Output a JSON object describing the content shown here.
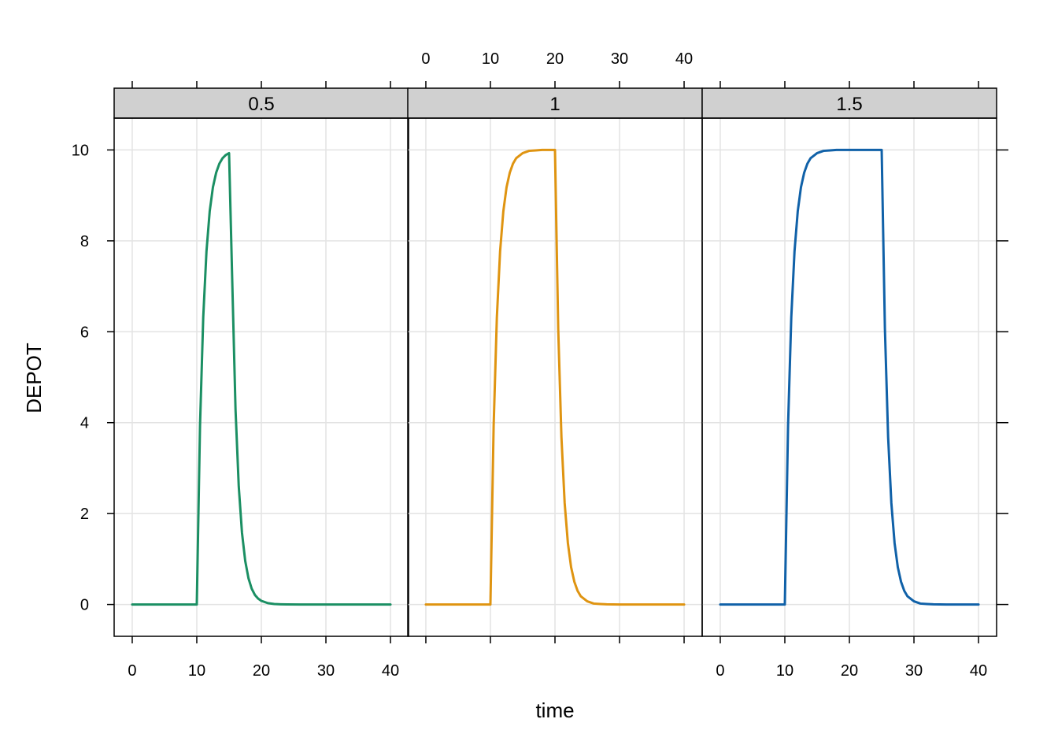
{
  "chart_data": {
    "type": "line",
    "layout": "lattice-panels",
    "xlabel": "time",
    "ylabel": "DEPOT",
    "xlim": [
      -2.8,
      42.8
    ],
    "ylim": [
      -0.7,
      10.7
    ],
    "x_ticks": [
      0,
      10,
      20,
      30,
      40
    ],
    "y_ticks": [
      0,
      2,
      4,
      6,
      8,
      10
    ],
    "grid": true,
    "legend": "none",
    "panels": [
      {
        "label": "0.5",
        "color": "#1b8f63",
        "x": [
          0,
          10,
          10.5,
          11,
          11.5,
          12,
          12.5,
          13,
          13.5,
          14,
          14.5,
          15,
          15.5,
          16,
          16.5,
          17,
          17.5,
          18,
          18.5,
          19,
          19.5,
          20,
          21,
          22,
          23,
          24,
          26,
          30,
          35,
          40
        ],
        "values": [
          0,
          0,
          3.93,
          6.32,
          7.77,
          8.65,
          9.18,
          9.5,
          9.7,
          9.82,
          9.89,
          9.93,
          7.07,
          4.29,
          2.6,
          1.58,
          0.96,
          0.58,
          0.35,
          0.21,
          0.13,
          0.08,
          0.03,
          0.01,
          0.004,
          0.001,
          0,
          0,
          0,
          0
        ]
      },
      {
        "label": "1",
        "color": "#df9411",
        "x": [
          0,
          10,
          10.5,
          11,
          11.5,
          12,
          12.5,
          13,
          13.5,
          14,
          15,
          16,
          17,
          18,
          20,
          20.5,
          21,
          21.5,
          22,
          22.5,
          23,
          23.5,
          24,
          25,
          26,
          27,
          28,
          30,
          35,
          40
        ],
        "values": [
          0,
          0,
          3.93,
          6.32,
          7.77,
          8.65,
          9.18,
          9.5,
          9.7,
          9.82,
          9.93,
          9.98,
          9.99,
          10.0,
          10.0,
          6.07,
          3.68,
          2.23,
          1.35,
          0.82,
          0.5,
          0.3,
          0.18,
          0.07,
          0.02,
          0.01,
          0.003,
          0,
          0,
          0
        ]
      },
      {
        "label": "1.5",
        "color": "#1061a8",
        "x": [
          0,
          10,
          10.5,
          11,
          11.5,
          12,
          12.5,
          13,
          13.5,
          14,
          15,
          16,
          17,
          18,
          20,
          25,
          25.5,
          26,
          26.5,
          27,
          27.5,
          28,
          28.5,
          29,
          30,
          31,
          32,
          33,
          35,
          40
        ],
        "values": [
          0,
          0,
          3.93,
          6.32,
          7.77,
          8.65,
          9.18,
          9.5,
          9.7,
          9.82,
          9.93,
          9.98,
          9.99,
          10.0,
          10.0,
          10.0,
          6.07,
          3.68,
          2.23,
          1.35,
          0.82,
          0.5,
          0.3,
          0.18,
          0.07,
          0.02,
          0.01,
          0.003,
          0,
          0
        ]
      }
    ]
  }
}
